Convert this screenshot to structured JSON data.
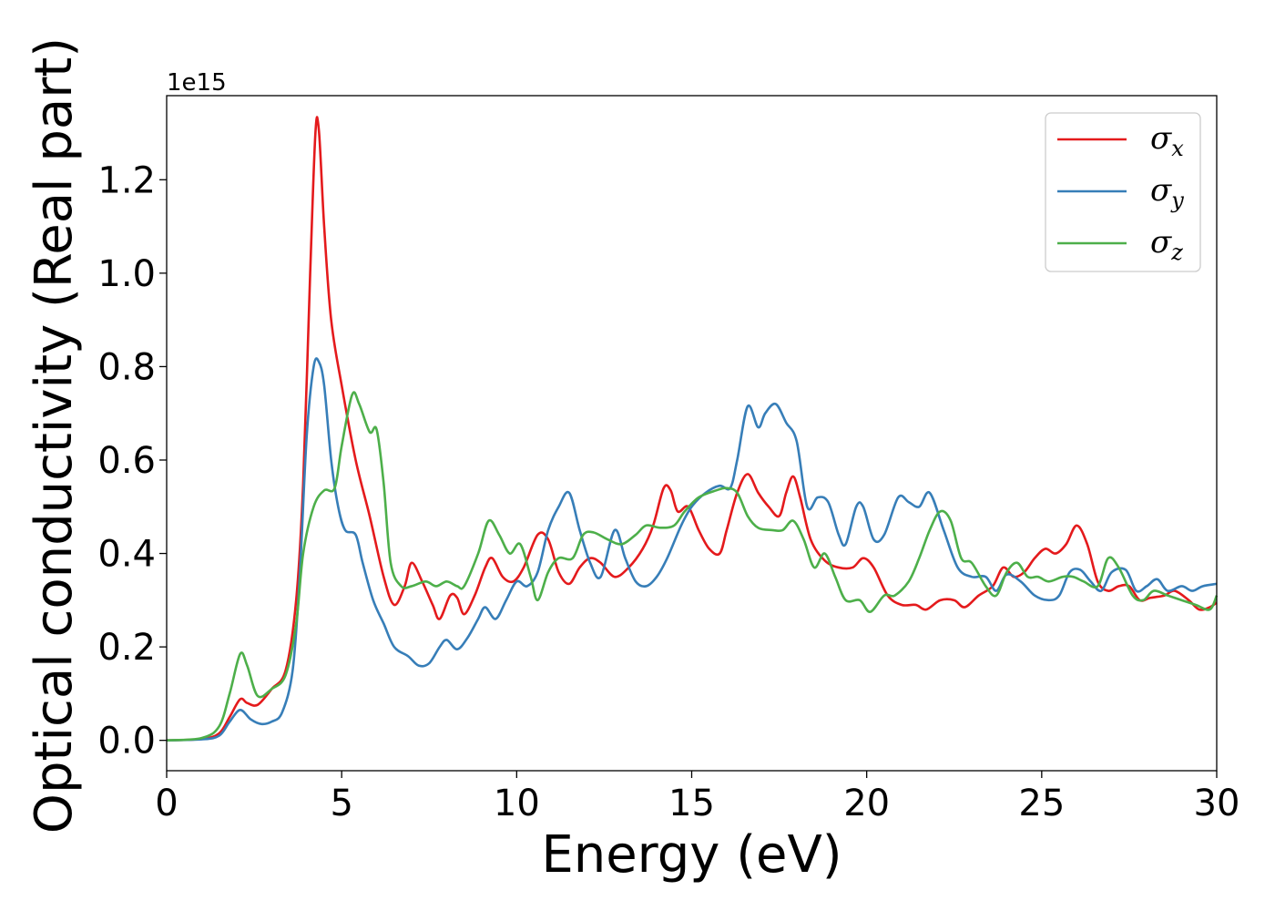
{
  "chart_data": {
    "type": "line",
    "title": "",
    "xlabel": "Energy (eV)",
    "ylabel": "Optical conductivity (Real part)",
    "y_offset_label": "1e15",
    "xlim": [
      0,
      30
    ],
    "ylim": [
      -0.065,
      1.38
    ],
    "x_ticks": [
      0,
      5,
      10,
      15,
      20,
      25,
      30
    ],
    "x_tick_labels": [
      "0",
      "5",
      "10",
      "15",
      "20",
      "25",
      "30"
    ],
    "y_ticks": [
      0.0,
      0.2,
      0.4,
      0.6,
      0.8,
      1.0,
      1.2
    ],
    "y_tick_labels": [
      "0.0",
      "0.2",
      "0.4",
      "0.6",
      "0.8",
      "1.0",
      "1.2"
    ],
    "grid": false,
    "legend_position": "top-right",
    "series": [
      {
        "name": "σx",
        "symbol": "σ",
        "subscript": "x",
        "color": "#e41a1c",
        "points": [
          [
            0,
            0
          ],
          [
            1,
            0.003
          ],
          [
            1.5,
            0.015
          ],
          [
            1.8,
            0.05
          ],
          [
            2.1,
            0.088
          ],
          [
            2.3,
            0.08
          ],
          [
            2.6,
            0.076
          ],
          [
            3.0,
            0.11
          ],
          [
            3.4,
            0.15
          ],
          [
            3.7,
            0.3
          ],
          [
            3.9,
            0.55
          ],
          [
            4.1,
            1.0
          ],
          [
            4.25,
            1.3
          ],
          [
            4.35,
            1.305
          ],
          [
            4.5,
            1.1
          ],
          [
            4.7,
            0.9
          ],
          [
            5.0,
            0.76
          ],
          [
            5.4,
            0.6
          ],
          [
            5.8,
            0.48
          ],
          [
            6.2,
            0.35
          ],
          [
            6.5,
            0.29
          ],
          [
            6.8,
            0.33
          ],
          [
            7.0,
            0.38
          ],
          [
            7.3,
            0.34
          ],
          [
            7.6,
            0.29
          ],
          [
            7.8,
            0.26
          ],
          [
            8.1,
            0.31
          ],
          [
            8.3,
            0.305
          ],
          [
            8.5,
            0.27
          ],
          [
            8.8,
            0.31
          ],
          [
            9.1,
            0.37
          ],
          [
            9.3,
            0.39
          ],
          [
            9.6,
            0.35
          ],
          [
            9.9,
            0.34
          ],
          [
            10.2,
            0.37
          ],
          [
            10.6,
            0.44
          ],
          [
            10.9,
            0.43
          ],
          [
            11.2,
            0.36
          ],
          [
            11.5,
            0.335
          ],
          [
            11.8,
            0.37
          ],
          [
            12.1,
            0.39
          ],
          [
            12.4,
            0.38
          ],
          [
            12.8,
            0.35
          ],
          [
            13.2,
            0.37
          ],
          [
            13.6,
            0.41
          ],
          [
            13.9,
            0.46
          ],
          [
            14.2,
            0.54
          ],
          [
            14.4,
            0.535
          ],
          [
            14.6,
            0.49
          ],
          [
            14.9,
            0.5
          ],
          [
            15.2,
            0.45
          ],
          [
            15.5,
            0.41
          ],
          [
            15.8,
            0.4
          ],
          [
            16.0,
            0.45
          ],
          [
            16.3,
            0.53
          ],
          [
            16.6,
            0.57
          ],
          [
            16.9,
            0.53
          ],
          [
            17.2,
            0.5
          ],
          [
            17.5,
            0.48
          ],
          [
            17.7,
            0.53
          ],
          [
            17.9,
            0.565
          ],
          [
            18.1,
            0.52
          ],
          [
            18.4,
            0.43
          ],
          [
            18.8,
            0.385
          ],
          [
            19.2,
            0.37
          ],
          [
            19.6,
            0.37
          ],
          [
            19.9,
            0.39
          ],
          [
            20.2,
            0.37
          ],
          [
            20.6,
            0.31
          ],
          [
            21.0,
            0.29
          ],
          [
            21.4,
            0.29
          ],
          [
            21.7,
            0.28
          ],
          [
            22.1,
            0.3
          ],
          [
            22.5,
            0.3
          ],
          [
            22.8,
            0.285
          ],
          [
            23.2,
            0.31
          ],
          [
            23.6,
            0.33
          ],
          [
            23.9,
            0.37
          ],
          [
            24.2,
            0.35
          ],
          [
            24.5,
            0.36
          ],
          [
            24.8,
            0.39
          ],
          [
            25.1,
            0.41
          ],
          [
            25.4,
            0.4
          ],
          [
            25.7,
            0.42
          ],
          [
            26.0,
            0.46
          ],
          [
            26.3,
            0.42
          ],
          [
            26.6,
            0.34
          ],
          [
            26.9,
            0.32
          ],
          [
            27.2,
            0.33
          ],
          [
            27.5,
            0.33
          ],
          [
            27.8,
            0.3
          ],
          [
            28.1,
            0.305
          ],
          [
            28.5,
            0.31
          ],
          [
            28.8,
            0.32
          ],
          [
            29.2,
            0.3
          ],
          [
            29.5,
            0.28
          ],
          [
            29.8,
            0.285
          ],
          [
            30,
            0.295
          ]
        ]
      },
      {
        "name": "σy",
        "symbol": "σ",
        "subscript": "y",
        "color": "#377eb8",
        "points": [
          [
            0,
            0
          ],
          [
            1,
            0.002
          ],
          [
            1.5,
            0.01
          ],
          [
            1.8,
            0.04
          ],
          [
            2.1,
            0.065
          ],
          [
            2.4,
            0.045
          ],
          [
            2.7,
            0.035
          ],
          [
            3.0,
            0.04
          ],
          [
            3.3,
            0.06
          ],
          [
            3.6,
            0.15
          ],
          [
            3.8,
            0.35
          ],
          [
            4.0,
            0.65
          ],
          [
            4.2,
            0.8
          ],
          [
            4.35,
            0.81
          ],
          [
            4.5,
            0.76
          ],
          [
            4.7,
            0.6
          ],
          [
            4.9,
            0.5
          ],
          [
            5.1,
            0.45
          ],
          [
            5.4,
            0.44
          ],
          [
            5.6,
            0.38
          ],
          [
            5.9,
            0.3
          ],
          [
            6.2,
            0.25
          ],
          [
            6.5,
            0.2
          ],
          [
            6.9,
            0.18
          ],
          [
            7.2,
            0.16
          ],
          [
            7.5,
            0.165
          ],
          [
            7.8,
            0.2
          ],
          [
            8.0,
            0.215
          ],
          [
            8.3,
            0.195
          ],
          [
            8.6,
            0.22
          ],
          [
            8.9,
            0.26
          ],
          [
            9.1,
            0.285
          ],
          [
            9.4,
            0.26
          ],
          [
            9.7,
            0.3
          ],
          [
            10.0,
            0.34
          ],
          [
            10.3,
            0.33
          ],
          [
            10.6,
            0.36
          ],
          [
            10.9,
            0.45
          ],
          [
            11.2,
            0.5
          ],
          [
            11.5,
            0.53
          ],
          [
            11.8,
            0.45
          ],
          [
            12.1,
            0.38
          ],
          [
            12.4,
            0.35
          ],
          [
            12.8,
            0.45
          ],
          [
            13.1,
            0.39
          ],
          [
            13.4,
            0.34
          ],
          [
            13.7,
            0.33
          ],
          [
            14.0,
            0.35
          ],
          [
            14.3,
            0.39
          ],
          [
            14.7,
            0.46
          ],
          [
            15.0,
            0.5
          ],
          [
            15.4,
            0.53
          ],
          [
            15.8,
            0.545
          ],
          [
            16.1,
            0.54
          ],
          [
            16.3,
            0.6
          ],
          [
            16.6,
            0.715
          ],
          [
            16.9,
            0.67
          ],
          [
            17.1,
            0.7
          ],
          [
            17.4,
            0.72
          ],
          [
            17.7,
            0.68
          ],
          [
            18.0,
            0.64
          ],
          [
            18.3,
            0.5
          ],
          [
            18.6,
            0.52
          ],
          [
            18.9,
            0.51
          ],
          [
            19.2,
            0.44
          ],
          [
            19.4,
            0.42
          ],
          [
            19.7,
            0.5
          ],
          [
            19.9,
            0.5
          ],
          [
            20.2,
            0.43
          ],
          [
            20.5,
            0.44
          ],
          [
            20.9,
            0.52
          ],
          [
            21.2,
            0.51
          ],
          [
            21.5,
            0.5
          ],
          [
            21.8,
            0.53
          ],
          [
            22.2,
            0.45
          ],
          [
            22.6,
            0.37
          ],
          [
            23.0,
            0.35
          ],
          [
            23.4,
            0.35
          ],
          [
            23.7,
            0.32
          ],
          [
            24.0,
            0.355
          ],
          [
            24.4,
            0.34
          ],
          [
            24.8,
            0.31
          ],
          [
            25.2,
            0.3
          ],
          [
            25.5,
            0.31
          ],
          [
            25.8,
            0.36
          ],
          [
            26.1,
            0.365
          ],
          [
            26.4,
            0.34
          ],
          [
            26.7,
            0.32
          ],
          [
            27.0,
            0.36
          ],
          [
            27.4,
            0.365
          ],
          [
            27.7,
            0.32
          ],
          [
            28.0,
            0.33
          ],
          [
            28.3,
            0.345
          ],
          [
            28.6,
            0.32
          ],
          [
            29.0,
            0.33
          ],
          [
            29.3,
            0.32
          ],
          [
            29.6,
            0.33
          ],
          [
            30,
            0.335
          ]
        ]
      },
      {
        "name": "σz",
        "symbol": "σ",
        "subscript": "z",
        "color": "#4daf4a",
        "points": [
          [
            0,
            0
          ],
          [
            1,
            0.005
          ],
          [
            1.5,
            0.03
          ],
          [
            1.8,
            0.1
          ],
          [
            2.1,
            0.185
          ],
          [
            2.3,
            0.16
          ],
          [
            2.6,
            0.095
          ],
          [
            3.0,
            0.11
          ],
          [
            3.4,
            0.14
          ],
          [
            3.7,
            0.25
          ],
          [
            3.9,
            0.4
          ],
          [
            4.2,
            0.5
          ],
          [
            4.5,
            0.535
          ],
          [
            4.8,
            0.54
          ],
          [
            5.0,
            0.63
          ],
          [
            5.3,
            0.74
          ],
          [
            5.5,
            0.72
          ],
          [
            5.8,
            0.66
          ],
          [
            6.0,
            0.665
          ],
          [
            6.2,
            0.55
          ],
          [
            6.4,
            0.38
          ],
          [
            6.7,
            0.33
          ],
          [
            7.0,
            0.33
          ],
          [
            7.4,
            0.34
          ],
          [
            7.7,
            0.33
          ],
          [
            8.0,
            0.34
          ],
          [
            8.3,
            0.33
          ],
          [
            8.5,
            0.33
          ],
          [
            8.9,
            0.4
          ],
          [
            9.2,
            0.47
          ],
          [
            9.5,
            0.44
          ],
          [
            9.8,
            0.4
          ],
          [
            10.1,
            0.42
          ],
          [
            10.4,
            0.35
          ],
          [
            10.6,
            0.3
          ],
          [
            10.9,
            0.36
          ],
          [
            11.2,
            0.39
          ],
          [
            11.6,
            0.39
          ],
          [
            11.9,
            0.44
          ],
          [
            12.2,
            0.445
          ],
          [
            12.6,
            0.43
          ],
          [
            13.0,
            0.42
          ],
          [
            13.4,
            0.44
          ],
          [
            13.7,
            0.46
          ],
          [
            14.1,
            0.455
          ],
          [
            14.5,
            0.46
          ],
          [
            14.8,
            0.49
          ],
          [
            15.2,
            0.52
          ],
          [
            15.7,
            0.535
          ],
          [
            16.0,
            0.54
          ],
          [
            16.3,
            0.53
          ],
          [
            16.6,
            0.48
          ],
          [
            16.9,
            0.455
          ],
          [
            17.3,
            0.45
          ],
          [
            17.6,
            0.45
          ],
          [
            17.9,
            0.47
          ],
          [
            18.2,
            0.43
          ],
          [
            18.5,
            0.37
          ],
          [
            18.8,
            0.4
          ],
          [
            19.1,
            0.35
          ],
          [
            19.4,
            0.3
          ],
          [
            19.8,
            0.3
          ],
          [
            20.1,
            0.275
          ],
          [
            20.5,
            0.31
          ],
          [
            20.8,
            0.31
          ],
          [
            21.2,
            0.34
          ],
          [
            21.5,
            0.39
          ],
          [
            21.8,
            0.45
          ],
          [
            22.1,
            0.49
          ],
          [
            22.4,
            0.47
          ],
          [
            22.7,
            0.39
          ],
          [
            23.0,
            0.38
          ],
          [
            23.4,
            0.33
          ],
          [
            23.7,
            0.31
          ],
          [
            24.0,
            0.36
          ],
          [
            24.3,
            0.38
          ],
          [
            24.6,
            0.35
          ],
          [
            24.9,
            0.35
          ],
          [
            25.2,
            0.34
          ],
          [
            25.6,
            0.35
          ],
          [
            25.9,
            0.35
          ],
          [
            26.2,
            0.34
          ],
          [
            26.6,
            0.33
          ],
          [
            26.9,
            0.39
          ],
          [
            27.2,
            0.37
          ],
          [
            27.6,
            0.31
          ],
          [
            27.9,
            0.3
          ],
          [
            28.2,
            0.32
          ],
          [
            28.6,
            0.31
          ],
          [
            29.0,
            0.3
          ],
          [
            29.4,
            0.29
          ],
          [
            29.8,
            0.28
          ],
          [
            30,
            0.31
          ]
        ]
      }
    ]
  }
}
